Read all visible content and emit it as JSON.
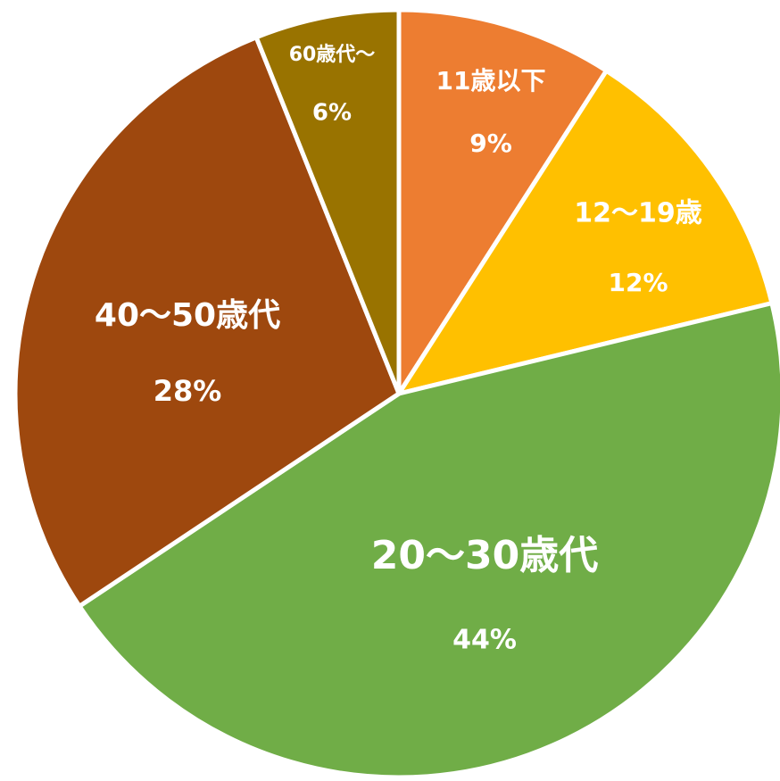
{
  "chart_data": {
    "type": "pie",
    "categories": [
      "11歳以下",
      "12～19歳",
      "20～30歳代",
      "40～50歳代",
      "60歳代～"
    ],
    "values": [
      9,
      12,
      44,
      28,
      6
    ],
    "value_labels": [
      "9%",
      "12%",
      "44%",
      "28%",
      "6%"
    ],
    "colors": [
      "#ED7D31",
      "#FFC000",
      "#70AD47",
      "#9E480E",
      "#997300"
    ]
  }
}
